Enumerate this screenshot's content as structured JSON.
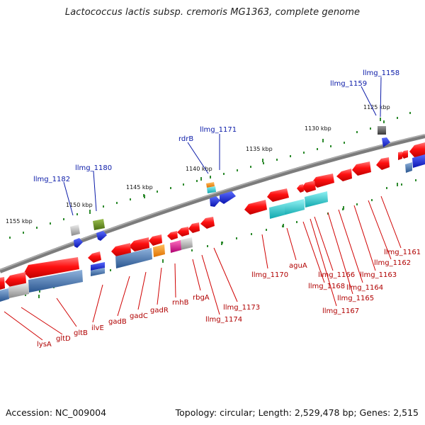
{
  "title": "Lactococcus lactis subsp. cremoris MG1363, complete genome",
  "footer": {
    "accession": "Accession: NC_009004",
    "topology": "Topology: circular; Length: 2,529,478 bp; Genes: 2,515"
  },
  "scale_labels": [
    "1125 kbp",
    "1130 kbp",
    "1135 kbp",
    "1140 kbp",
    "1145 kbp",
    "1150 kbp",
    "1155 kbp"
  ],
  "forward_gene_labels": [
    "llmg_1158",
    "llmg_1159",
    "llmg_1171",
    "rdrB",
    "llmg_1180",
    "llmg_1182"
  ],
  "reverse_gene_labels": [
    "llmg_1161",
    "llmg_1162",
    "llmg_1163",
    "llmg_1164",
    "llmg_1165",
    "llmg_1166",
    "llmg_1167",
    "llmg_1168",
    "aguA",
    "llmg_1170",
    "llmg_1173",
    "rbgA",
    "llmg_1174",
    "rnhB",
    "gadR",
    "gadC",
    "gadB",
    "ilvE",
    "gltB",
    "gltD",
    "lysA"
  ],
  "colors": {
    "backbone": "#7a7a7a",
    "tick": "#2e8b2e",
    "forward_label": "#0a1aa8",
    "reverse_label": "#b00000",
    "gene_red": "#ff1010",
    "gene_blue": "#1a2be0",
    "gene_cyan": "#19c6cc",
    "gene_steel": "#3f6fa8",
    "gene_orange": "#ff8c00",
    "gene_magenta": "#e0108a",
    "gene_olive": "#5f8a1a",
    "gene_gray": "#a8a8a8"
  }
}
